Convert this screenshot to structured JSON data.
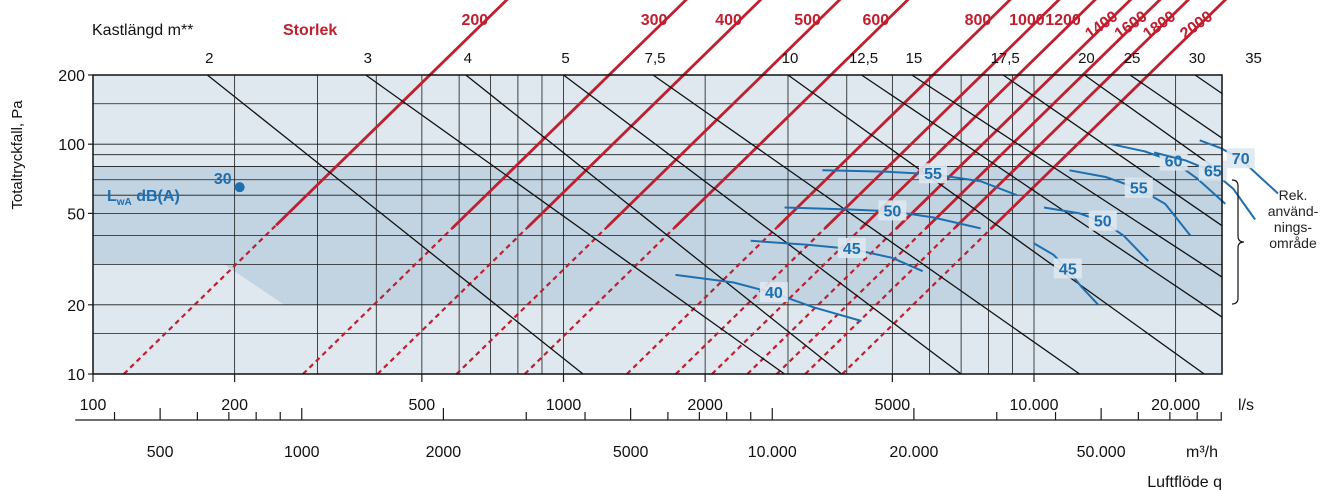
{
  "chart_data": {
    "type": "line",
    "title": "",
    "xlabel": "Luftflöde q",
    "ylabel": "Totaltryckfall, Pa",
    "x_scale": "log",
    "y_scale": "log",
    "xlim_ls": [
      100,
      30000
    ],
    "ylim": [
      10,
      200
    ],
    "grid": true,
    "x_ticks_ls": [
      {
        "value": 100,
        "label": "100"
      },
      {
        "value": 200,
        "label": "200"
      },
      {
        "value": 500,
        "label": "500"
      },
      {
        "value": 1000,
        "label": "1000"
      },
      {
        "value": 2000,
        "label": "2000"
      },
      {
        "value": 5000,
        "label": "5000"
      },
      {
        "value": 10000,
        "label": "10.000"
      },
      {
        "value": 20000,
        "label": "20.000"
      }
    ],
    "x_unit_ls": "l/s",
    "x_ticks_m3h": [
      {
        "value": 500,
        "label": "500"
      },
      {
        "value": 1000,
        "label": "1000"
      },
      {
        "value": 2000,
        "label": "2000"
      },
      {
        "value": 5000,
        "label": "5000"
      },
      {
        "value": 10000,
        "label": "10.000"
      },
      {
        "value": 20000,
        "label": "20.000"
      },
      {
        "value": 50000,
        "label": "50.000"
      }
    ],
    "x_unit_m3h": "m³/h",
    "y_ticks": [
      {
        "value": 200,
        "label": "200"
      },
      {
        "value": 100,
        "label": "100"
      },
      {
        "value": 50,
        "label": "50"
      },
      {
        "value": 20,
        "label": "20"
      },
      {
        "value": 10,
        "label": "10"
      }
    ],
    "throw_label": "Kastlängd m**",
    "throw_lines": [
      {
        "label": "2",
        "top_q": 175,
        "bottom_q": 1100
      },
      {
        "label": "3",
        "top_q": 380,
        "bottom_q": 2950
      },
      {
        "label": "4",
        "top_q": 620,
        "bottom_q": 3900
      },
      {
        "label": "5",
        "top_q": 1000,
        "bottom_q": 7000
      },
      {
        "label": "7,5",
        "top_q": 1550,
        "bottom_q": 12500
      },
      {
        "label": "10",
        "top_q": 3000,
        "bottom_q": 23000
      },
      {
        "label": "12,5",
        "top_q": 4300,
        "bottom_q": 38000
      },
      {
        "label": "15",
        "top_q": 5500,
        "bottom_q": 52000
      },
      {
        "label": "17,5",
        "top_q": 8600,
        "bottom_q": 72000
      },
      {
        "label": "20",
        "top_q": 12800,
        "bottom_q": 100000
      },
      {
        "label": "25",
        "top_q": 16000,
        "bottom_q": 135000
      },
      {
        "label": "30",
        "top_q": 22000,
        "bottom_q": 185000
      },
      {
        "label": "35",
        "top_q": 29000,
        "bottom_q": 250000
      }
    ],
    "size_label": "Storlek",
    "size_lines": [
      {
        "label": "200",
        "pa200_q": 520,
        "recommended_q": [
          245,
          1150
        ]
      },
      {
        "label": "300",
        "pa200_q": 1250,
        "recommended_q": [
          580,
          2700
        ]
      },
      {
        "label": "400",
        "pa200_q": 1800,
        "recommended_q": [
          840,
          3900
        ]
      },
      {
        "label": "500",
        "pa200_q": 2650,
        "recommended_q": [
          1240,
          5700
        ]
      },
      {
        "label": "600",
        "pa200_q": 3700,
        "recommended_q": [
          1720,
          8000
        ]
      },
      {
        "label": "800",
        "pa200_q": 6100,
        "recommended_q": [
          2850,
          13200
        ]
      },
      {
        "label": "1000",
        "pa200_q": 7750,
        "recommended_q": [
          3600,
          16800
        ]
      },
      {
        "label": "1200",
        "pa200_q": 9250,
        "recommended_q": [
          4300,
          20000
        ]
      },
      {
        "label": "1400",
        "pa200_q": 11000,
        "recommended_q": [
          5100,
          23700
        ]
      },
      {
        "label": "1600",
        "pa200_q": 12700,
        "recommended_q": [
          5900,
          27500
        ]
      },
      {
        "label": "1800",
        "pa200_q": 14600,
        "recommended_q": [
          6800,
          31600
        ]
      },
      {
        "label": "2000",
        "pa200_q": 17500,
        "recommended_q": [
          8100,
          37800
        ]
      }
    ],
    "sound_label": "L",
    "sound_label_sub": "wA",
    "sound_label_rest": " dB(A)",
    "sound_curves": [
      {
        "label": "30",
        "points": [
          [
            205,
            65
          ]
        ]
      },
      {
        "label": "40",
        "points": [
          [
            1730,
            27
          ],
          [
            2300,
            25
          ],
          [
            2800,
            22.5
          ],
          [
            3400,
            19.5
          ],
          [
            4300,
            17
          ]
        ]
      },
      {
        "label": "45",
        "points": [
          [
            2500,
            38
          ],
          [
            3300,
            36.5
          ],
          [
            4100,
            35
          ],
          [
            5000,
            32
          ],
          [
            5800,
            28
          ]
        ]
      },
      {
        "label": "50",
        "points": [
          [
            2950,
            53
          ],
          [
            4000,
            52
          ],
          [
            5000,
            51
          ],
          [
            6100,
            48
          ],
          [
            7700,
            43
          ]
        ]
      },
      {
        "label": "55",
        "points": [
          [
            3550,
            77
          ],
          [
            4800,
            76
          ],
          [
            6100,
            74
          ],
          [
            7700,
            69
          ],
          [
            9200,
            60
          ]
        ]
      },
      {
        "label": "45",
        "points": [
          [
            10000,
            37
          ],
          [
            11000,
            33
          ],
          [
            11800,
            28.5
          ],
          [
            12600,
            24
          ],
          [
            13700,
            20
          ]
        ]
      },
      {
        "label": "50",
        "points": [
          [
            10500,
            53
          ],
          [
            12500,
            50
          ],
          [
            14000,
            46
          ],
          [
            15500,
            40
          ],
          [
            17500,
            31
          ]
        ]
      },
      {
        "label": "55",
        "points": [
          [
            11900,
            77
          ],
          [
            14200,
            72
          ],
          [
            16700,
            64
          ],
          [
            19000,
            55
          ],
          [
            21500,
            40
          ]
        ]
      },
      {
        "label": "60",
        "points": [
          [
            14600,
            100
          ],
          [
            17200,
            93
          ],
          [
            19800,
            84
          ],
          [
            22200,
            71
          ],
          [
            25500,
            55
          ]
        ]
      },
      {
        "label": "65",
        "points": [
          [
            18000,
            92
          ],
          [
            21000,
            85
          ],
          [
            24000,
            76
          ],
          [
            26500,
            64
          ],
          [
            29500,
            47
          ]
        ]
      },
      {
        "label": "70",
        "points": [
          [
            22500,
            104
          ],
          [
            25000,
            96
          ],
          [
            27500,
            86
          ],
          [
            30000,
            73
          ],
          [
            33000,
            61
          ]
        ]
      }
    ],
    "recommended_range_label": "Rek. använd-nings-område",
    "recommended_range_lines": [
      "Rek.",
      "använd-",
      "nings-",
      "område"
    ],
    "recommended_range_pa": [
      20,
      70
    ],
    "colors": {
      "background": "#dfe8ef",
      "band": "#c2d4e2",
      "grid": "#1a1a1a",
      "size_lines": "#bf1f2e",
      "throw_lines": "#111111",
      "sound_curves": "#1e6fb0",
      "axis_text": "#111111"
    }
  }
}
